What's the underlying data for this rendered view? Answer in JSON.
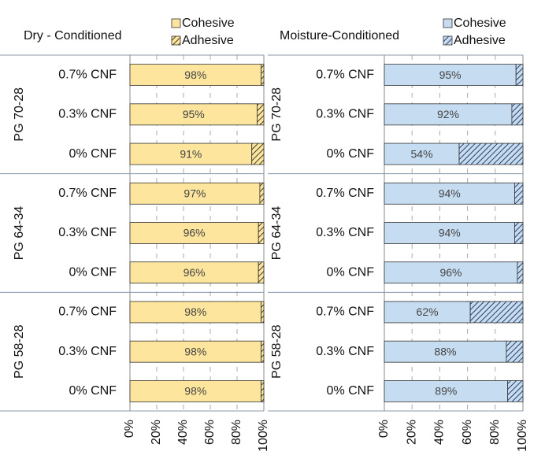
{
  "chart_data": [
    {
      "type": "bar",
      "orientation": "horizontal",
      "stacked": true,
      "title": "Dry - Conditioned",
      "groups": [
        {
          "label": "PG 70-28",
          "categories": [
            "0.7% CNF",
            "0.3% CNF",
            "0% CNF"
          ]
        },
        {
          "label": "PG 64-34",
          "categories": [
            "0.7% CNF",
            "0.3% CNF",
            "0% CNF"
          ]
        },
        {
          "label": "PG 58-28",
          "categories": [
            "0.7% CNF",
            "0.3% CNF",
            "0% CNF"
          ]
        }
      ],
      "series": [
        {
          "name": "Cohesive",
          "color": "#fde59d",
          "values": [
            98,
            95,
            91,
            97,
            96,
            96,
            98,
            98,
            98
          ],
          "value_labels": [
            "98%",
            "95%",
            "91%",
            "97%",
            "96%",
            "96%",
            "98%",
            "98%",
            "98%"
          ]
        },
        {
          "name": "Adhesive",
          "color": "#fde59d",
          "hatch": true,
          "hatch_color": "#3a3a2a",
          "values": [
            2,
            5,
            9,
            3,
            4,
            4,
            2,
            2,
            2
          ]
        }
      ],
      "xlim": [
        0,
        100
      ],
      "xticks": [
        {
          "value": 0,
          "label": "0%"
        },
        {
          "value": 20,
          "label": "20%"
        },
        {
          "value": 40,
          "label": "40%"
        },
        {
          "value": 60,
          "label": "60%"
        },
        {
          "value": 80,
          "label": "80%"
        },
        {
          "value": 100,
          "label": "100%"
        }
      ],
      "grid": true
    },
    {
      "type": "bar",
      "orientation": "horizontal",
      "stacked": true,
      "title": "Moisture-Conditioned",
      "groups": [
        {
          "label": "PG 70-28",
          "categories": [
            "0.7% CNF",
            "0.3% CNF",
            "0% CNF"
          ]
        },
        {
          "label": "PG 64-34",
          "categories": [
            "0.7% CNF",
            "0.3% CNF",
            "0% CNF"
          ]
        },
        {
          "label": "PG 58-28",
          "categories": [
            "0.7% CNF",
            "0.3% CNF",
            "0% CNF"
          ]
        }
      ],
      "series": [
        {
          "name": "Cohesive",
          "color": "#c6dcf1",
          "values": [
            95,
            92,
            54,
            94,
            94,
            96,
            62,
            88,
            89
          ],
          "value_labels": [
            "95%",
            "92%",
            "54%",
            "94%",
            "94%",
            "96%",
            "62%",
            "88%",
            "89%"
          ]
        },
        {
          "name": "Adhesive",
          "color": "#c6dcf1",
          "hatch": true,
          "hatch_color": "#2c3e66",
          "values": [
            5,
            8,
            46,
            6,
            6,
            4,
            38,
            12,
            11
          ]
        }
      ],
      "xlim": [
        0,
        100
      ],
      "xticks": [
        {
          "value": 0,
          "label": "0%"
        },
        {
          "value": 20,
          "label": "20%"
        },
        {
          "value": 40,
          "label": "40%"
        },
        {
          "value": 60,
          "label": "60%"
        },
        {
          "value": 80,
          "label": "80%"
        },
        {
          "value": 100,
          "label": "100%"
        }
      ],
      "grid": true
    }
  ]
}
